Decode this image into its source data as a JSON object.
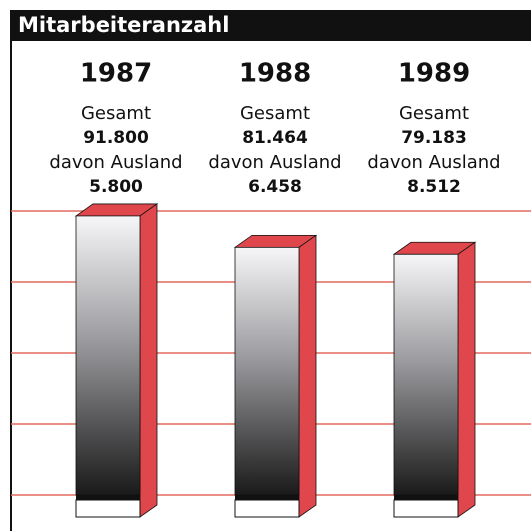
{
  "chart_data": {
    "type": "bar",
    "title": "Mitarbeiteranzahl",
    "categories": [
      "1987",
      "1988",
      "1989"
    ],
    "series": [
      {
        "name": "Gesamt",
        "color": "#e0474c",
        "values": [
          91800,
          81464,
          79183
        ],
        "value_labels": [
          "91.800",
          "81.464",
          "79.183"
        ]
      },
      {
        "name": "davon Ausland",
        "values": [
          5800,
          6458,
          8512
        ],
        "value_labels": [
          "5.800",
          "6.458",
          "8.512"
        ]
      }
    ]
  }
}
